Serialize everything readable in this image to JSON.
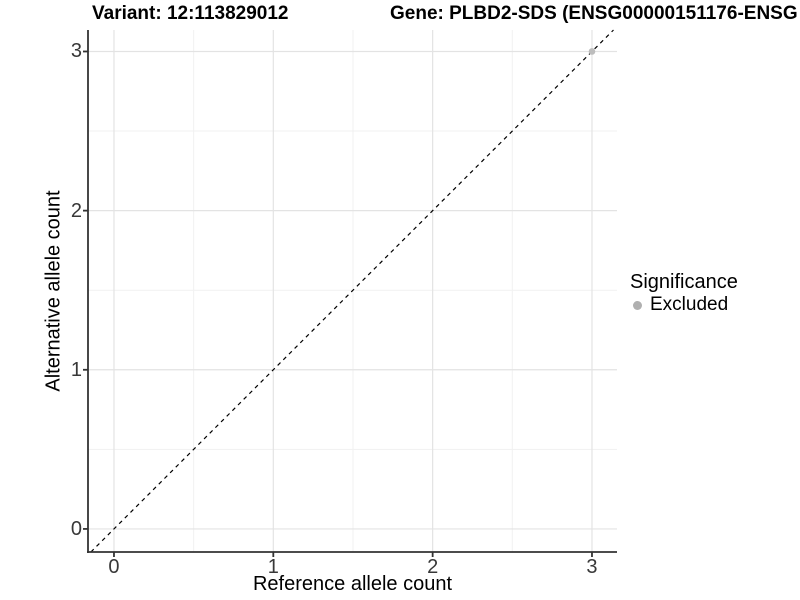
{
  "chart_data": {
    "type": "scatter",
    "titles": [
      "Variant: 12:113829012",
      "Gene: PLBD2-SDS (ENSG00000151176-ENSG"
    ],
    "xlabel": "Reference allele count",
    "ylabel": "Alternative allele count",
    "x_ticks": [
      0,
      1,
      2,
      3
    ],
    "y_ticks": [
      0,
      1,
      2,
      3
    ],
    "minor_ticks": [
      0.5,
      1.5,
      2.5
    ],
    "xlim": [
      -0.163,
      3.157
    ],
    "ylim": [
      -0.145,
      3.135
    ],
    "grid": "white panel, light-gray major and minor gridlines, dark axis lines left and bottom",
    "series": [
      {
        "name": "Excluded",
        "color": "#bdbdbd",
        "points": [
          [
            3,
            3
          ]
        ]
      }
    ],
    "reference_line": {
      "kind": "identity y = x",
      "style": "dashed",
      "color": "#000000"
    },
    "legend": {
      "title": "Significance",
      "position": "right-center",
      "items": [
        {
          "label": "Excluded",
          "color": "#b0b0b0"
        }
      ]
    },
    "colors": {
      "grid_major": "#e3e3e3",
      "grid_minor": "#f1f1f1",
      "axis_line": "#333333",
      "tick_text": "#383838",
      "title_text": "#000000",
      "background": "#ffffff"
    }
  }
}
